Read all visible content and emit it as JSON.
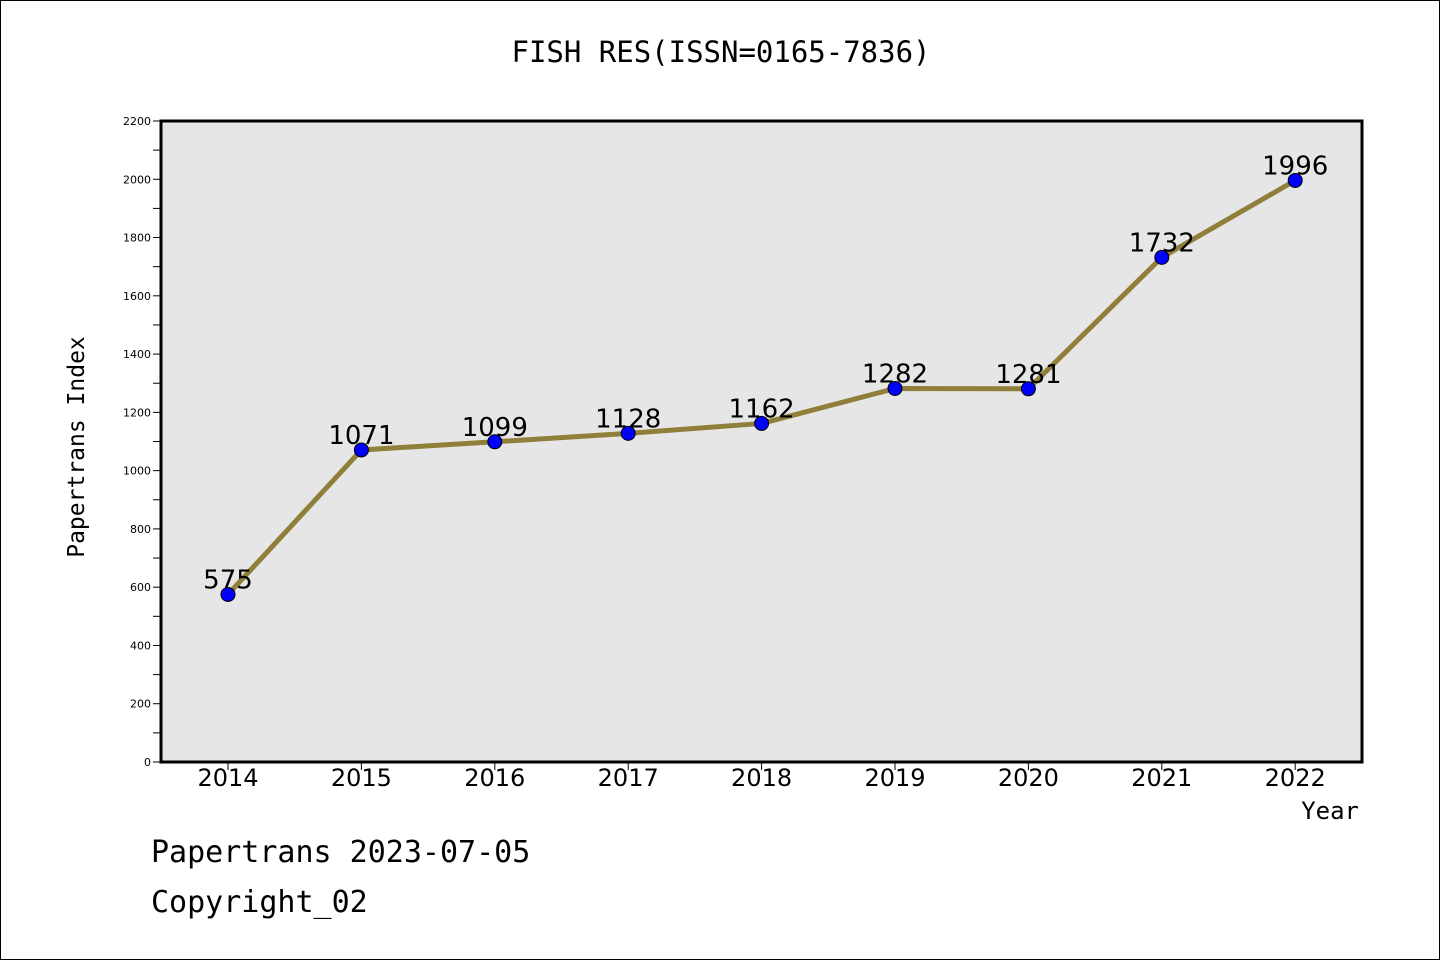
{
  "chart_data": {
    "type": "line",
    "title": "FISH RES(ISSN=0165-7836)",
    "xlabel": "Year",
    "ylabel": "Papertrans Index",
    "categories": [
      "2014",
      "2015",
      "2016",
      "2017",
      "2018",
      "2019",
      "2020",
      "2021",
      "2022"
    ],
    "values": [
      575,
      1071,
      1099,
      1128,
      1162,
      1282,
      1281,
      1732,
      1996
    ],
    "ylim": [
      0,
      2200
    ],
    "yticks": [
      0,
      200,
      400,
      600,
      800,
      1000,
      1200,
      1400,
      1600,
      1800,
      2000,
      2200
    ],
    "grid": false,
    "line_color": "#8f7f3a",
    "marker_color": "#0000ff",
    "plot_background": "#e6e6e6"
  },
  "footer": {
    "date": "Papertrans 2023-07-05",
    "copyright": "Copyright_02"
  }
}
